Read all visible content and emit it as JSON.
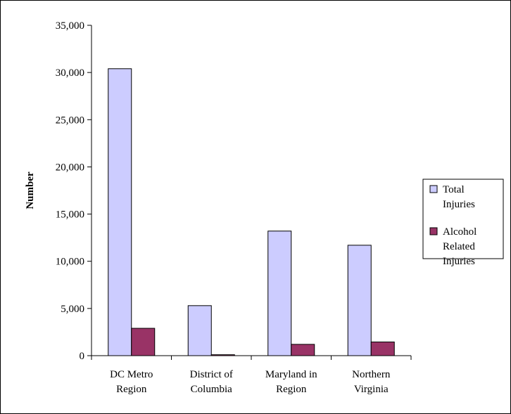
{
  "chart_data": {
    "type": "bar",
    "title": "",
    "xlabel": "",
    "ylabel": "Number",
    "ylim": [
      0,
      35000
    ],
    "yticks": [
      0,
      5000,
      10000,
      15000,
      20000,
      25000,
      30000,
      35000
    ],
    "categories": [
      [
        "DC Metro",
        "Region"
      ],
      [
        "District of",
        "Columbia"
      ],
      [
        "Maryland in",
        "Region"
      ],
      [
        "Northern",
        "Virginia"
      ]
    ],
    "series": [
      {
        "name": "Total Injuries",
        "legend_lines": [
          "Total",
          "Injuries"
        ],
        "color": "#ccccff",
        "values": [
          30400,
          5300,
          13200,
          11700
        ]
      },
      {
        "name": "Alcohol Related Injuries",
        "legend_lines": [
          "Alcohol",
          "Related",
          "Injuries"
        ],
        "color": "#993366",
        "values": [
          2900,
          100,
          1200,
          1450
        ]
      }
    ],
    "grid": false,
    "legend_position": "right"
  }
}
